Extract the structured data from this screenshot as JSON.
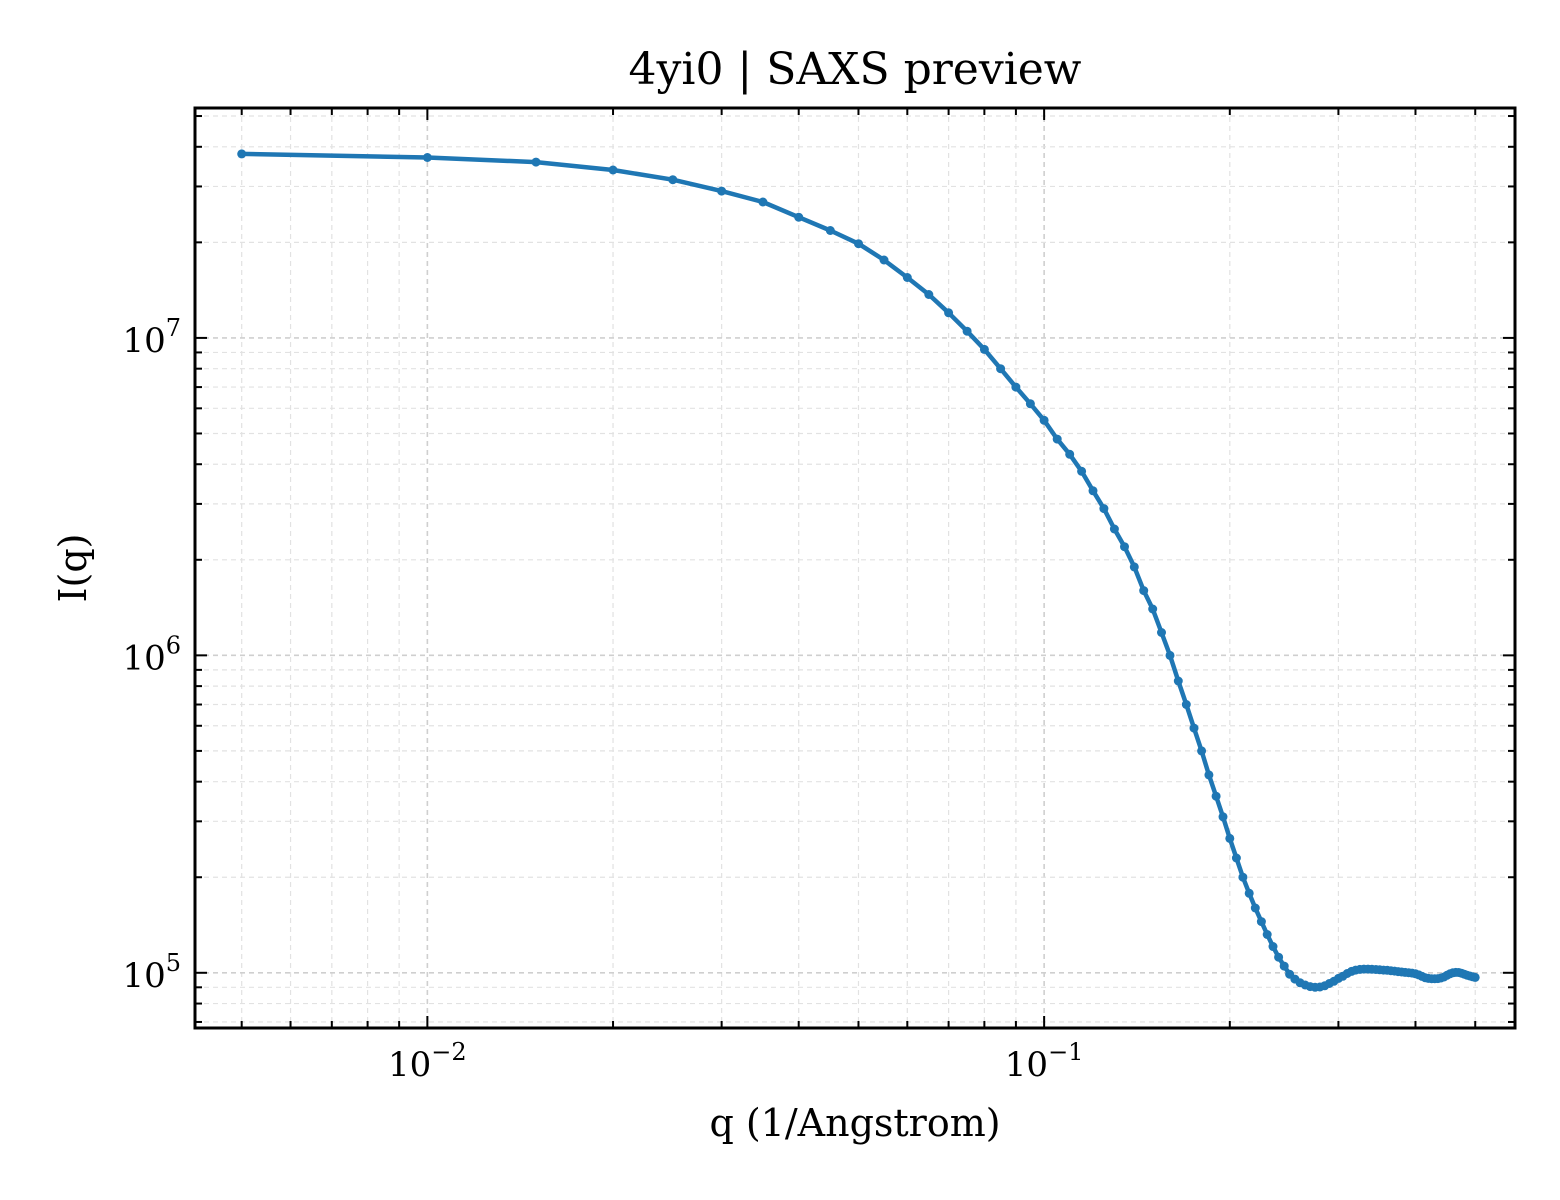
{
  "chart_data": {
    "type": "line",
    "title": "4yi0 | SAXS preview",
    "xlabel": "q (1/Angstrom)",
    "ylabel": "I(q)",
    "x_scale": "log",
    "y_scale": "log",
    "xlim": [
      0.0042,
      0.58
    ],
    "ylim": [
      67000,
      53000000
    ],
    "x_ticks": [
      {
        "value": 0.01,
        "base": "10",
        "exp": "−2"
      },
      {
        "value": 0.1,
        "base": "10",
        "exp": "−1"
      }
    ],
    "y_ticks": [
      {
        "value": 100000,
        "base": "10",
        "exp": "5"
      },
      {
        "value": 1000000,
        "base": "10",
        "exp": "6"
      },
      {
        "value": 10000000,
        "base": "10",
        "exp": "7"
      }
    ],
    "grid": true,
    "line_color": "#1f77b4",
    "series": [
      {
        "x": [
          0.005,
          0.01,
          0.015,
          0.02,
          0.025,
          0.03,
          0.035,
          0.04,
          0.045,
          0.05,
          0.055,
          0.06,
          0.065,
          0.07,
          0.075,
          0.08,
          0.085,
          0.09,
          0.095,
          0.1,
          0.105,
          0.11,
          0.115,
          0.12,
          0.125,
          0.13,
          0.135,
          0.14,
          0.145,
          0.15,
          0.155,
          0.16,
          0.165,
          0.17,
          0.175,
          0.18,
          0.185,
          0.19,
          0.195,
          0.2,
          0.205,
          0.21,
          0.215,
          0.22,
          0.225,
          0.23,
          0.235,
          0.24,
          0.245,
          0.25,
          0.255,
          0.26,
          0.265,
          0.27,
          0.275,
          0.28,
          0.285,
          0.29,
          0.295,
          0.3,
          0.305,
          0.31,
          0.315,
          0.32,
          0.325,
          0.33,
          0.335,
          0.34,
          0.345,
          0.35,
          0.355,
          0.36,
          0.365,
          0.37,
          0.375,
          0.38,
          0.385,
          0.39,
          0.395,
          0.4,
          0.405,
          0.41,
          0.415,
          0.42,
          0.425,
          0.43,
          0.435,
          0.44,
          0.445,
          0.45,
          0.455,
          0.46,
          0.465,
          0.47,
          0.475,
          0.48,
          0.485,
          0.49,
          0.495,
          0.5
        ],
        "y": [
          38000000,
          37000000,
          35800000,
          33800000,
          31500000,
          29000000,
          26800000,
          24000000,
          21800000,
          19800000,
          17600000,
          15500000,
          13700000,
          12000000,
          10500000,
          9200000,
          8000000,
          7000000,
          6200000,
          5500000,
          4800000,
          4300000,
          3800000,
          3300000,
          2900000,
          2500000,
          2200000,
          1900000,
          1600000,
          1400000,
          1180000,
          1000000,
          830000,
          700000,
          590000,
          500000,
          420000,
          360000,
          310000,
          265000,
          230000,
          200000,
          178000,
          160000,
          145000,
          132000,
          121000,
          112000,
          105000,
          99000,
          95500,
          93000,
          91500,
          90500,
          90000,
          90200,
          91000,
          92500,
          94000,
          96000,
          97500,
          99500,
          101000,
          102000,
          102500,
          102700,
          102700,
          102600,
          102400,
          102200,
          102000,
          101800,
          101500,
          101200,
          100900,
          100600,
          100300,
          100100,
          99800,
          99300,
          98500,
          97400,
          96400,
          96000,
          95800,
          95800,
          95900,
          96300,
          97000,
          98200,
          99300,
          100000,
          100300,
          100200,
          99700,
          99000,
          98300,
          97700,
          97100,
          96700
        ]
      }
    ]
  }
}
